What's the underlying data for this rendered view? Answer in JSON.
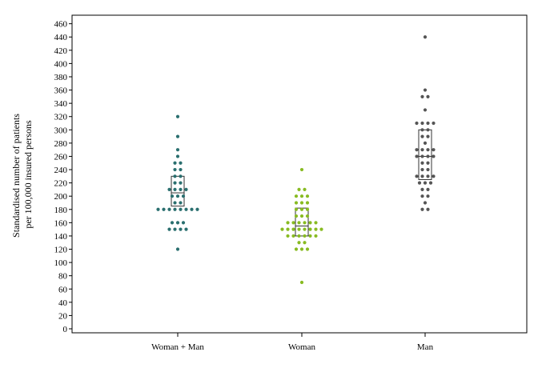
{
  "chart_data": {
    "type": "scatter",
    "subtype": "dot-plot-with-box",
    "title": "",
    "ylabel_lines": [
      "Standardised number of patients",
      "per 100,000 insured persons"
    ],
    "xlabel": "",
    "ylim": [
      0,
      460
    ],
    "yticks": [
      0,
      20,
      40,
      60,
      80,
      100,
      120,
      140,
      160,
      180,
      200,
      220,
      240,
      260,
      280,
      300,
      320,
      340,
      360,
      380,
      400,
      420,
      440,
      460
    ],
    "grid": false,
    "legend": "none",
    "categories": [
      "Woman + Man",
      "Woman",
      "Man"
    ],
    "series": [
      {
        "category": "Woman + Man",
        "color": "#2a6f6f",
        "box": {
          "q1": 185,
          "median": 205,
          "q3": 230
        },
        "points": [
          120,
          150,
          150,
          150,
          150,
          160,
          160,
          160,
          180,
          180,
          180,
          180,
          180,
          180,
          180,
          180,
          190,
          190,
          200,
          200,
          200,
          210,
          210,
          210,
          210,
          220,
          220,
          230,
          230,
          240,
          240,
          250,
          250,
          260,
          270,
          290,
          320
        ]
      },
      {
        "category": "Woman",
        "color": "#88bb22",
        "box": {
          "q1": 140,
          "median": 155,
          "q3": 182
        },
        "points": [
          70,
          120,
          120,
          120,
          130,
          130,
          140,
          140,
          140,
          140,
          140,
          140,
          150,
          150,
          150,
          150,
          150,
          150,
          150,
          150,
          160,
          160,
          160,
          160,
          160,
          160,
          170,
          170,
          170,
          180,
          180,
          180,
          190,
          190,
          190,
          200,
          200,
          200,
          210,
          210,
          240
        ]
      },
      {
        "category": "Man",
        "color": "#555555",
        "box": {
          "q1": 225,
          "median": 260,
          "q3": 300
        },
        "points": [
          180,
          180,
          190,
          200,
          200,
          210,
          210,
          220,
          220,
          220,
          230,
          230,
          230,
          230,
          240,
          240,
          250,
          250,
          260,
          260,
          260,
          260,
          270,
          270,
          270,
          270,
          280,
          290,
          290,
          300,
          300,
          310,
          310,
          310,
          310,
          330,
          350,
          350,
          360,
          440
        ]
      }
    ]
  }
}
